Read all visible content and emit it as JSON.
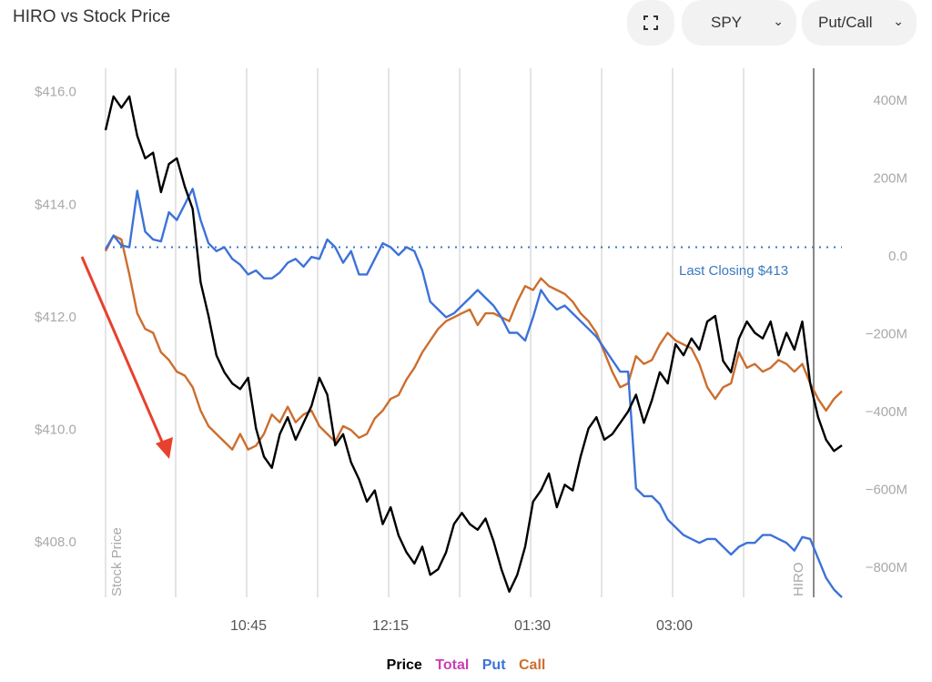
{
  "header": {
    "title": "HIRO vs Stock Price",
    "symbol_select": "SPY",
    "mode_select": "Put/Call"
  },
  "colors": {
    "price": "#000000",
    "total": "#cc3db8",
    "put": "#3d72d9",
    "call": "#cc6e2e",
    "arrow": "#e8402e",
    "closing_line": "#3a78c0"
  },
  "legend": {
    "price": "Price",
    "total": "Total",
    "put": "Put",
    "call": "Call"
  },
  "chart_data": {
    "type": "line",
    "title": "HIRO vs Stock Price",
    "left_axis": {
      "label": "Stock Price",
      "range": [
        407.0,
        416.4
      ],
      "ticks": [
        "$416.0",
        "$414.0",
        "$412.0",
        "$410.0",
        "$408.0"
      ]
    },
    "right_axis": {
      "label": "HIRO",
      "range": [
        -880,
        480
      ],
      "ticks": [
        "400M",
        "200M",
        "0.0",
        "−200M",
        "−400M",
        "−600M",
        "−800M"
      ]
    },
    "x_axis": {
      "ticks": [
        "10:45",
        "12:15",
        "01:30",
        "03:00"
      ]
    },
    "grid": true,
    "annotation": "Last Closing $413",
    "last_closing_hiro": 20,
    "series": [
      {
        "name": "Price",
        "axis": "left",
        "points": [
          [
            0,
            415.3
          ],
          [
            1,
            415.9
          ],
          [
            2,
            415.7
          ],
          [
            3,
            415.9
          ],
          [
            4,
            415.2
          ],
          [
            5,
            414.8
          ],
          [
            6,
            414.9
          ],
          [
            7,
            414.2
          ],
          [
            8,
            414.7
          ],
          [
            9,
            414.8
          ],
          [
            10,
            414.3
          ],
          [
            11,
            413.9
          ],
          [
            12,
            412.6
          ],
          [
            13,
            412.0
          ],
          [
            14,
            411.3
          ],
          [
            15,
            411.0
          ],
          [
            16,
            410.8
          ],
          [
            17,
            410.7
          ],
          [
            18,
            410.9
          ],
          [
            19,
            410.0
          ],
          [
            20,
            409.5
          ],
          [
            21,
            409.3
          ],
          [
            22,
            409.9
          ],
          [
            23,
            410.2
          ],
          [
            24,
            409.8
          ],
          [
            25,
            410.1
          ],
          [
            26,
            410.4
          ],
          [
            27,
            410.9
          ],
          [
            28,
            410.6
          ],
          [
            29,
            409.7
          ],
          [
            30,
            409.9
          ],
          [
            31,
            409.4
          ],
          [
            32,
            409.1
          ],
          [
            33,
            408.7
          ],
          [
            34,
            408.9
          ],
          [
            35,
            408.3
          ],
          [
            36,
            408.6
          ],
          [
            37,
            408.1
          ],
          [
            38,
            407.8
          ],
          [
            39,
            407.6
          ],
          [
            40,
            407.9
          ],
          [
            41,
            407.4
          ],
          [
            42,
            407.5
          ],
          [
            43,
            407.8
          ],
          [
            44,
            408.3
          ],
          [
            45,
            408.5
          ],
          [
            46,
            408.3
          ],
          [
            47,
            408.2
          ],
          [
            48,
            408.4
          ],
          [
            49,
            408.0
          ],
          [
            50,
            407.5
          ],
          [
            51,
            407.1
          ],
          [
            52,
            407.4
          ],
          [
            53,
            407.9
          ],
          [
            54,
            408.7
          ],
          [
            55,
            408.9
          ],
          [
            56,
            409.2
          ],
          [
            57,
            408.6
          ],
          [
            58,
            409.0
          ],
          [
            59,
            408.9
          ],
          [
            60,
            409.5
          ],
          [
            61,
            410.0
          ],
          [
            62,
            410.2
          ],
          [
            63,
            409.8
          ],
          [
            64,
            409.9
          ],
          [
            65,
            410.1
          ],
          [
            66,
            410.3
          ],
          [
            67,
            410.6
          ],
          [
            68,
            410.1
          ],
          [
            69,
            410.5
          ],
          [
            70,
            411.0
          ],
          [
            71,
            410.8
          ],
          [
            72,
            411.5
          ],
          [
            73,
            411.3
          ],
          [
            74,
            411.6
          ],
          [
            75,
            411.4
          ],
          [
            76,
            411.9
          ],
          [
            77,
            412.0
          ],
          [
            78,
            411.2
          ],
          [
            79,
            411.0
          ],
          [
            80,
            411.6
          ],
          [
            81,
            411.9
          ],
          [
            82,
            411.7
          ],
          [
            83,
            411.6
          ],
          [
            84,
            411.9
          ],
          [
            85,
            411.3
          ],
          [
            86,
            411.7
          ],
          [
            87,
            411.4
          ],
          [
            88,
            411.9
          ],
          [
            89,
            410.8
          ],
          [
            90,
            410.2
          ],
          [
            91,
            409.8
          ],
          [
            92,
            409.6
          ],
          [
            93,
            409.7
          ]
        ]
      },
      {
        "name": "Put",
        "axis": "right",
        "points": [
          [
            0,
            15
          ],
          [
            1,
            50
          ],
          [
            2,
            25
          ],
          [
            3,
            20
          ],
          [
            4,
            165
          ],
          [
            5,
            60
          ],
          [
            6,
            40
          ],
          [
            7,
            35
          ],
          [
            8,
            110
          ],
          [
            9,
            90
          ],
          [
            10,
            130
          ],
          [
            11,
            170
          ],
          [
            12,
            90
          ],
          [
            13,
            30
          ],
          [
            14,
            10
          ],
          [
            15,
            20
          ],
          [
            16,
            -10
          ],
          [
            17,
            -25
          ],
          [
            18,
            -50
          ],
          [
            19,
            -40
          ],
          [
            20,
            -60
          ],
          [
            21,
            -60
          ],
          [
            22,
            -45
          ],
          [
            23,
            -20
          ],
          [
            24,
            -10
          ],
          [
            25,
            -30
          ],
          [
            26,
            -5
          ],
          [
            27,
            -10
          ],
          [
            28,
            40
          ],
          [
            29,
            20
          ],
          [
            30,
            -20
          ],
          [
            31,
            10
          ],
          [
            32,
            -50
          ],
          [
            33,
            -50
          ],
          [
            34,
            -10
          ],
          [
            35,
            30
          ],
          [
            36,
            20
          ],
          [
            37,
            0
          ],
          [
            38,
            20
          ],
          [
            39,
            10
          ],
          [
            40,
            -40
          ],
          [
            41,
            -120
          ],
          [
            42,
            -140
          ],
          [
            43,
            -160
          ],
          [
            44,
            -150
          ],
          [
            45,
            -130
          ],
          [
            46,
            -110
          ],
          [
            47,
            -90
          ],
          [
            48,
            -110
          ],
          [
            49,
            -130
          ],
          [
            50,
            -160
          ],
          [
            51,
            -200
          ],
          [
            52,
            -200
          ],
          [
            53,
            -220
          ],
          [
            54,
            -160
          ],
          [
            55,
            -90
          ],
          [
            56,
            -120
          ],
          [
            57,
            -140
          ],
          [
            58,
            -130
          ],
          [
            59,
            -150
          ],
          [
            60,
            -170
          ],
          [
            61,
            -190
          ],
          [
            62,
            -210
          ],
          [
            63,
            -240
          ],
          [
            64,
            -270
          ],
          [
            65,
            -300
          ],
          [
            66,
            -300
          ],
          [
            67,
            -600
          ],
          [
            68,
            -620
          ],
          [
            69,
            -620
          ],
          [
            70,
            -640
          ],
          [
            71,
            -680
          ],
          [
            72,
            -700
          ],
          [
            73,
            -720
          ],
          [
            74,
            -730
          ],
          [
            75,
            -740
          ],
          [
            76,
            -730
          ],
          [
            77,
            -730
          ],
          [
            78,
            -750
          ],
          [
            79,
            -770
          ],
          [
            80,
            -750
          ],
          [
            81,
            -740
          ],
          [
            82,
            -740
          ],
          [
            83,
            -720
          ],
          [
            84,
            -720
          ],
          [
            85,
            -730
          ],
          [
            86,
            -740
          ],
          [
            87,
            -760
          ],
          [
            88,
            -725
          ],
          [
            89,
            -730
          ],
          [
            90,
            -780
          ],
          [
            91,
            -830
          ],
          [
            92,
            -860
          ],
          [
            93,
            -880
          ]
        ]
      },
      {
        "name": "Call",
        "axis": "right",
        "points": [
          [
            0,
            10
          ],
          [
            1,
            50
          ],
          [
            2,
            40
          ],
          [
            3,
            -50
          ],
          [
            4,
            -150
          ],
          [
            5,
            -190
          ],
          [
            6,
            -200
          ],
          [
            7,
            -250
          ],
          [
            8,
            -270
          ],
          [
            9,
            -300
          ],
          [
            10,
            -310
          ],
          [
            11,
            -340
          ],
          [
            12,
            -400
          ],
          [
            13,
            -440
          ],
          [
            14,
            -460
          ],
          [
            15,
            -480
          ],
          [
            16,
            -500
          ],
          [
            17,
            -460
          ],
          [
            18,
            -500
          ],
          [
            19,
            -490
          ],
          [
            20,
            -460
          ],
          [
            21,
            -410
          ],
          [
            22,
            -430
          ],
          [
            23,
            -390
          ],
          [
            24,
            -430
          ],
          [
            25,
            -410
          ],
          [
            26,
            -400
          ],
          [
            27,
            -440
          ],
          [
            28,
            -460
          ],
          [
            29,
            -480
          ],
          [
            30,
            -440
          ],
          [
            31,
            -450
          ],
          [
            32,
            -470
          ],
          [
            33,
            -460
          ],
          [
            34,
            -420
          ],
          [
            35,
            -400
          ],
          [
            36,
            -370
          ],
          [
            37,
            -360
          ],
          [
            38,
            -320
          ],
          [
            39,
            -290
          ],
          [
            40,
            -250
          ],
          [
            41,
            -220
          ],
          [
            42,
            -190
          ],
          [
            43,
            -170
          ],
          [
            44,
            -160
          ],
          [
            45,
            -150
          ],
          [
            46,
            -140
          ],
          [
            47,
            -180
          ],
          [
            48,
            -150
          ],
          [
            49,
            -150
          ],
          [
            50,
            -160
          ],
          [
            51,
            -170
          ],
          [
            52,
            -120
          ],
          [
            53,
            -80
          ],
          [
            54,
            -90
          ],
          [
            55,
            -60
          ],
          [
            56,
            -80
          ],
          [
            57,
            -90
          ],
          [
            58,
            -100
          ],
          [
            59,
            -120
          ],
          [
            60,
            -150
          ],
          [
            61,
            -170
          ],
          [
            62,
            -200
          ],
          [
            63,
            -250
          ],
          [
            64,
            -300
          ],
          [
            65,
            -340
          ],
          [
            66,
            -330
          ],
          [
            67,
            -260
          ],
          [
            68,
            -280
          ],
          [
            69,
            -270
          ],
          [
            70,
            -230
          ],
          [
            71,
            -200
          ],
          [
            72,
            -220
          ],
          [
            73,
            -230
          ],
          [
            74,
            -240
          ],
          [
            75,
            -280
          ],
          [
            76,
            -340
          ],
          [
            77,
            -370
          ],
          [
            78,
            -340
          ],
          [
            79,
            -330
          ],
          [
            80,
            -250
          ],
          [
            81,
            -290
          ],
          [
            82,
            -280
          ],
          [
            83,
            -300
          ],
          [
            84,
            -290
          ],
          [
            85,
            -270
          ],
          [
            86,
            -280
          ],
          [
            87,
            -300
          ],
          [
            88,
            -280
          ],
          [
            89,
            -330
          ],
          [
            90,
            -370
          ],
          [
            91,
            -400
          ],
          [
            92,
            -370
          ],
          [
            93,
            -350
          ]
        ]
      }
    ]
  }
}
